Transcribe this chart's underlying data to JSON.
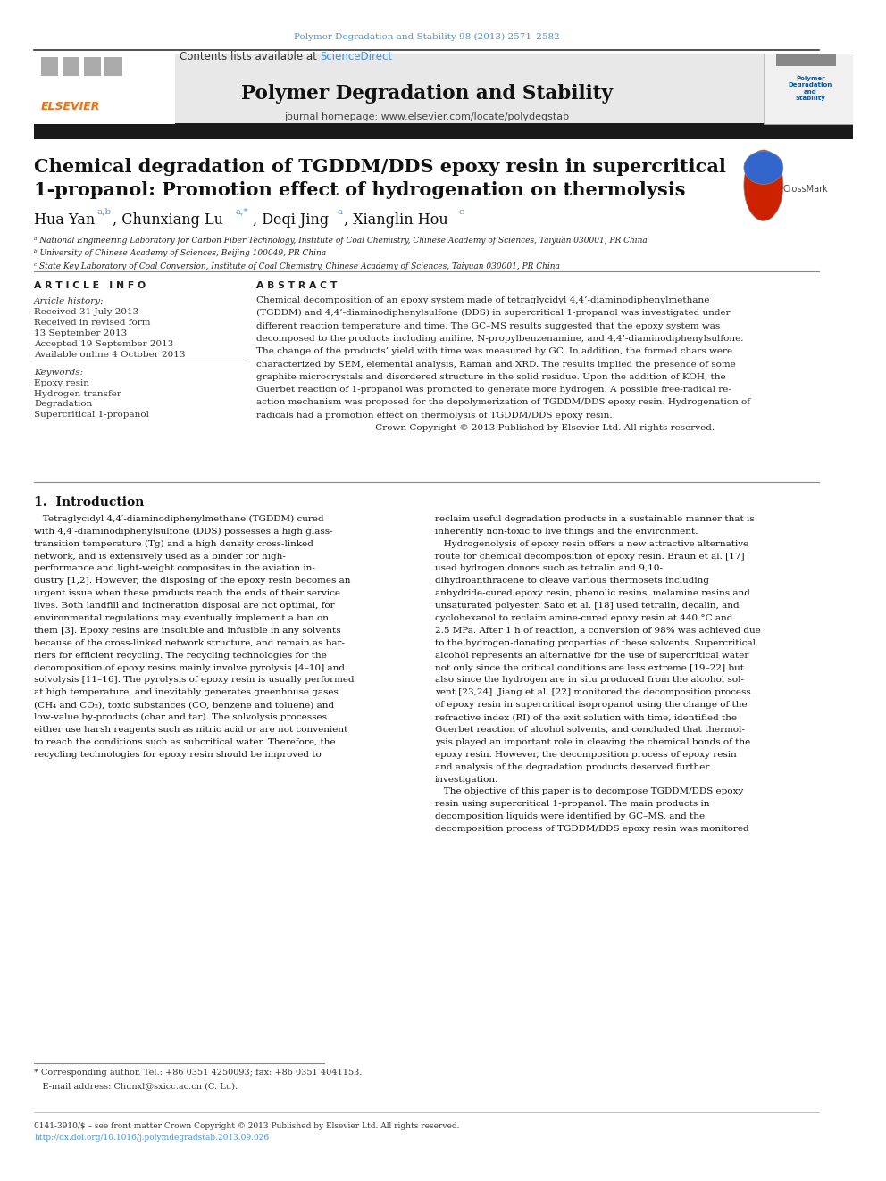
{
  "page_width": 9.92,
  "page_height": 13.23,
  "background_color": "#ffffff",
  "top_journal_ref": "Polymer Degradation and Stability 98 (2013) 2571–2582",
  "top_journal_ref_color": "#4a90d9",
  "journal_name": "Polymer Degradation and Stability",
  "contents_text": "Contents lists available at ",
  "sciencedirect_text": "ScienceDirect",
  "sciencedirect_color": "#4a90d9",
  "journal_homepage": "journal homepage: www.elsevier.com/locate/polydegstab",
  "header_bg_color": "#e8e8e8",
  "article_title": "Chemical degradation of TGDDM/DDS epoxy resin in supercritical\n1-propanol: Promotion effect of hydrogenation on thermolysis",
  "affil_a": "ᵃ National Engineering Laboratory for Carbon Fiber Technology, Institute of Coal Chemistry, Chinese Academy of Sciences, Taiyuan 030001, PR China",
  "affil_b": "ᵇ University of Chinese Academy of Sciences, Beijing 100049, PR China",
  "affil_c": "ᶜ State Key Laboratory of Coal Conversion, Institute of Coal Chemistry, Chinese Academy of Sciences, Taiyuan 030001, PR China",
  "article_info_title": "A R T I C L E   I N F O",
  "abstract_title": "A B S T R A C T",
  "article_history_title": "Article history:",
  "received": "Received 31 July 2013",
  "revised": "Received in revised form",
  "revised2": "13 September 2013",
  "accepted": "Accepted 19 September 2013",
  "available": "Available online 4 October 2013",
  "keywords_title": "Keywords:",
  "keyword1": "Epoxy resin",
  "keyword2": "Hydrogen transfer",
  "keyword3": "Degradation",
  "keyword4": "Supercritical 1-propanol",
  "abstract_text": "Chemical decomposition of an epoxy system made of tetraglycidyl 4,4’-diaminodiphenylmethane\n(TGDDM) and 4,4’-diaminodiphenylsulfone (DDS) in supercritical 1-propanol was investigated under\ndifferent reaction temperature and time. The GC–MS results suggested that the epoxy system was\ndecomposed to the products including aniline, N-propylbenzenamine, and 4,4’-diaminodiphenylsulfone.\nThe change of the products’ yield with time was measured by GC. In addition, the formed chars were\ncharacterized by SEM, elemental analysis, Raman and XRD. The results implied the presence of some\ngraphite microcrystals and disordered structure in the solid residue. Upon the addition of KOH, the\nGuerbet reaction of 1-propanol was promoted to generate more hydrogen. A possible free-radical re-\naction mechanism was proposed for the depolymerization of TGDDM/DDS epoxy resin. Hydrogenation of\nradicals had a promotion effect on thermolysis of TGDDM/DDS epoxy resin.\n                                         Crown Copyright © 2013 Published by Elsevier Ltd. All rights reserved.",
  "section1_title": "1.  Introduction",
  "intro_col1": "   Tetraglycidyl 4,4′-diaminodiphenylmethane (TGDDM) cured\nwith 4,4′-diaminodiphenylsulfone (DDS) possesses a high glass-\ntransition temperature (Tg) and a high density cross-linked\nnetwork, and is extensively used as a binder for high-\nperformance and light-weight composites in the aviation in-\ndustry [1,2]. However, the disposing of the epoxy resin becomes an\nurgent issue when these products reach the ends of their service\nlives. Both landfill and incineration disposal are not optimal, for\nenvironmental regulations may eventually implement a ban on\nthem [3]. Epoxy resins are insoluble and infusible in any solvents\nbecause of the cross-linked network structure, and remain as bar-\nriers for efficient recycling. The recycling technologies for the\ndecomposition of epoxy resins mainly involve pyrolysis [4–10] and\nsolvolysis [11–16]. The pyrolysis of epoxy resin is usually performed\nat high temperature, and inevitably generates greenhouse gases\n(CH₄ and CO₂), toxic substances (CO, benzene and toluene) and\nlow-value by-products (char and tar). The solvolysis processes\neither use harsh reagents such as nitric acid or are not convenient\nto reach the conditions such as subcritical water. Therefore, the\nrecycling technologies for epoxy resin should be improved to",
  "intro_col2": "reclaim useful degradation products in a sustainable manner that is\ninherently non-toxic to live things and the environment.\n   Hydrogenolysis of epoxy resin offers a new attractive alternative\nroute for chemical decomposition of epoxy resin. Braun et al. [17]\nused hydrogen donors such as tetralin and 9,10-\ndihydroanthracene to cleave various thermosets including\nanhydride-cured epoxy resin, phenolic resins, melamine resins and\nunsaturated polyester. Sato et al. [18] used tetralin, decalin, and\ncyclohexanol to reclaim amine-cured epoxy resin at 440 °C and\n2.5 MPa. After 1 h of reaction, a conversion of 98% was achieved due\nto the hydrogen-donating properties of these solvents. Supercritical\nalcohol represents an alternative for the use of supercritical water\nnot only since the critical conditions are less extreme [19–22] but\nalso since the hydrogen are in situ produced from the alcohol sol-\nvent [23,24]. Jiang et al. [22] monitored the decomposition process\nof epoxy resin in supercritical isopropanol using the change of the\nrefractive index (RI) of the exit solution with time, identified the\nGuerbet reaction of alcohol solvents, and concluded that thermol-\nysis played an important role in cleaving the chemical bonds of the\nepoxy resin. However, the decomposition process of epoxy resin\nand analysis of the degradation products deserved further\ninvestigation.\n   The objective of this paper is to decompose TGDDM/DDS epoxy\nresin using supercritical 1-propanol. The main products in\ndecomposition liquids were identified by GC–MS, and the\ndecomposition process of TGDDM/DDS epoxy resin was monitored",
  "footnote_star": "* Corresponding author. Tel.: +86 0351 4250093; fax: +86 0351 4041153.",
  "footnote_email": "   E-mail address: Chunxl@sxicc.ac.cn (C. Lu).",
  "bottom_line1": "0141-3910/$ – see front matter Crown Copyright © 2013 Published by Elsevier Ltd. All rights reserved.",
  "bottom_line2": "http://dx.doi.org/10.1016/j.polymdegradstab.2013.09.026",
  "bottom_line2_color": "#4a90d9",
  "elsevier_orange": "#f07010",
  "crossmark_red": "#cc2200"
}
